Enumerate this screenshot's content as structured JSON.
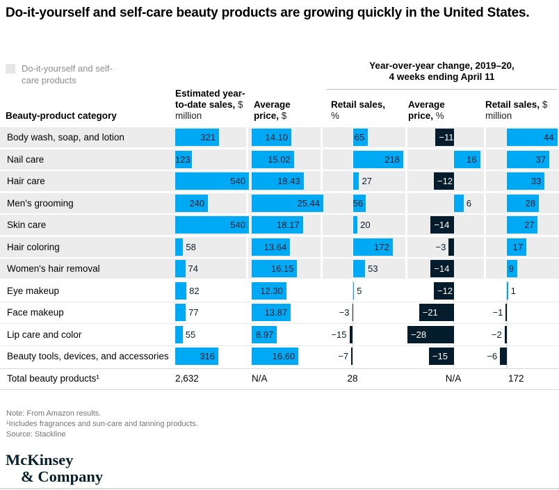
{
  "title": "Do-it-yourself and self-care beauty products are growing quickly in the United States.",
  "legend": {
    "label": "Do-it-yourself and self-care products",
    "swatch_color": "#e7e7e7"
  },
  "yoy_header": {
    "line1": "Year-over-year change, 2019–20,",
    "line2": "4 weeks ending April 11"
  },
  "columns": [
    {
      "bold": "Beauty-product category",
      "unit": ""
    },
    {
      "bold": "Estimated year-to-date sales,",
      "unit": "$ million"
    },
    {
      "bold": "Average price,",
      "unit": "$"
    },
    {
      "bold": "Retail sales,",
      "unit": "%"
    },
    {
      "bold": "Average price,",
      "unit": "%"
    },
    {
      "bold": "Retail sales,",
      "unit": "$ million"
    }
  ],
  "colors": {
    "positive_bar": "#00a9f4",
    "negative_bar": "#051c2c",
    "row_highlight": "#ececec",
    "bar_label_dark": "#051c2c",
    "bar_label_light": "#ffffff"
  },
  "table": {
    "rows": [
      {
        "category": "Body wash, soap, and lotion",
        "shaded": true,
        "cells": [
          {
            "v": 321,
            "label": "321",
            "pos": "in"
          },
          {
            "v": 14.1,
            "label": "14.10",
            "pos": "in"
          },
          {
            "v": 65,
            "label": "65",
            "pos": "in"
          },
          {
            "v": -11,
            "label": "−11",
            "pos": "in"
          },
          {
            "v": 44,
            "label": "44",
            "pos": "in"
          }
        ]
      },
      {
        "category": "Nail care",
        "shaded": true,
        "cells": [
          {
            "v": 123,
            "label": "123",
            "pos": "in"
          },
          {
            "v": 15.02,
            "label": "15.02",
            "pos": "in"
          },
          {
            "v": 218,
            "label": "218",
            "pos": "in"
          },
          {
            "v": 16,
            "label": "16",
            "pos": "in"
          },
          {
            "v": 37,
            "label": "37",
            "pos": "in"
          }
        ]
      },
      {
        "category": "Hair care",
        "shaded": true,
        "cells": [
          {
            "v": 540,
            "label": "540",
            "pos": "in"
          },
          {
            "v": 18.43,
            "label": "18.43",
            "pos": "in"
          },
          {
            "v": 27,
            "label": "27",
            "pos": "out"
          },
          {
            "v": -12,
            "label": "−12",
            "pos": "in"
          },
          {
            "v": 33,
            "label": "33",
            "pos": "in"
          }
        ]
      },
      {
        "category": "Men's grooming",
        "shaded": true,
        "cells": [
          {
            "v": 240,
            "label": "240",
            "pos": "in"
          },
          {
            "v": 25.44,
            "label": "25.44",
            "pos": "in"
          },
          {
            "v": 56,
            "label": "56",
            "pos": "in"
          },
          {
            "v": 6,
            "label": "6",
            "pos": "out"
          },
          {
            "v": 28,
            "label": "28",
            "pos": "in"
          }
        ]
      },
      {
        "category": "Skin care",
        "shaded": true,
        "cells": [
          {
            "v": 540,
            "label": "540",
            "pos": "in"
          },
          {
            "v": 18.17,
            "label": "18.17",
            "pos": "in"
          },
          {
            "v": 20,
            "label": "20",
            "pos": "out"
          },
          {
            "v": -14,
            "label": "−14",
            "pos": "in"
          },
          {
            "v": 27,
            "label": "27",
            "pos": "in"
          }
        ]
      },
      {
        "category": "Hair coloring",
        "shaded": true,
        "cells": [
          {
            "v": 58,
            "label": "58",
            "pos": "out"
          },
          {
            "v": 13.64,
            "label": "13.64",
            "pos": "in"
          },
          {
            "v": 172,
            "label": "172",
            "pos": "in"
          },
          {
            "v": -3,
            "label": "−3",
            "pos": "out"
          },
          {
            "v": 17,
            "label": "17",
            "pos": "in"
          }
        ]
      },
      {
        "category": "Women's hair removal",
        "shaded": true,
        "cells": [
          {
            "v": 74,
            "label": "74",
            "pos": "out"
          },
          {
            "v": 16.15,
            "label": "16.15",
            "pos": "in"
          },
          {
            "v": 53,
            "label": "53",
            "pos": "out"
          },
          {
            "v": -14,
            "label": "−14",
            "pos": "in"
          },
          {
            "v": 9,
            "label": "9",
            "pos": "in"
          }
        ]
      },
      {
        "category": "Eye makeup",
        "shaded": false,
        "cells": [
          {
            "v": 82,
            "label": "82",
            "pos": "out"
          },
          {
            "v": 12.3,
            "label": "12.30",
            "pos": "in"
          },
          {
            "v": 5,
            "label": "5",
            "pos": "out"
          },
          {
            "v": -12,
            "label": "−12",
            "pos": "in"
          },
          {
            "v": 1,
            "label": "1",
            "pos": "out"
          }
        ]
      },
      {
        "category": "Face makeup",
        "shaded": false,
        "cells": [
          {
            "v": 77,
            "label": "77",
            "pos": "out"
          },
          {
            "v": 13.87,
            "label": "13.87",
            "pos": "in"
          },
          {
            "v": -3,
            "label": "−3",
            "pos": "out"
          },
          {
            "v": -21,
            "label": "−21",
            "pos": "in"
          },
          {
            "v": -1,
            "label": "−1",
            "pos": "out"
          }
        ]
      },
      {
        "category": "Lip care and color",
        "shaded": false,
        "cells": [
          {
            "v": 55,
            "label": "55",
            "pos": "out"
          },
          {
            "v": 8.97,
            "label": "8.97",
            "pos": "in"
          },
          {
            "v": -15,
            "label": "−15",
            "pos": "out"
          },
          {
            "v": -28,
            "label": "−28",
            "pos": "in"
          },
          {
            "v": -2,
            "label": "−2",
            "pos": "out"
          }
        ]
      },
      {
        "category": "Beauty tools, devices, and accessories",
        "shaded": false,
        "cells": [
          {
            "v": 316,
            "label": "316",
            "pos": "in"
          },
          {
            "v": 16.6,
            "label": "16.60",
            "pos": "in"
          },
          {
            "v": -7,
            "label": "−7",
            "pos": "out"
          },
          {
            "v": -15,
            "label": "−15",
            "pos": "in"
          },
          {
            "v": -6,
            "label": "−6",
            "pos": "out"
          }
        ]
      }
    ]
  },
  "totals": {
    "category": "Total beauty products¹",
    "ytd": "2,632",
    "price": "N/A",
    "retail_pct": "28",
    "price_pct": "N/A",
    "retail_m": "172"
  },
  "footnotes": [
    "Note: From Amazon results.",
    "¹Includes fragrances and sun-care and tanning products.",
    "Source: Stackline"
  ],
  "logo": {
    "line1": "McKinsey",
    "line2": "& Company"
  },
  "chart_data": {
    "type": "bar",
    "title": "Do-it-yourself and self-care beauty products are growing quickly in the United States.",
    "subtitle": "Year-over-year change, 2019–20, 4 weeks ending April 11",
    "categories": [
      "Body wash, soap, and lotion",
      "Nail care",
      "Hair care",
      "Men's grooming",
      "Skin care",
      "Hair coloring",
      "Women's hair removal",
      "Eye makeup",
      "Face makeup",
      "Lip care and color",
      "Beauty tools, devices, and accessories"
    ],
    "series": [
      {
        "name": "Estimated year-to-date sales, $ million",
        "values": [
          321,
          123,
          540,
          240,
          540,
          58,
          74,
          82,
          77,
          55,
          316
        ]
      },
      {
        "name": "Average price, $",
        "values": [
          14.1,
          15.02,
          18.43,
          25.44,
          18.17,
          13.64,
          16.15,
          12.3,
          13.87,
          8.97,
          16.6
        ]
      },
      {
        "name": "Retail sales YoY change, %",
        "values": [
          65,
          218,
          27,
          56,
          20,
          172,
          53,
          5,
          -3,
          -15,
          -7
        ]
      },
      {
        "name": "Average price YoY change, %",
        "values": [
          -11,
          16,
          -12,
          6,
          -14,
          -3,
          -14,
          -12,
          -21,
          -28,
          -15
        ]
      },
      {
        "name": "Retail sales YoY change, $ million",
        "values": [
          44,
          37,
          33,
          28,
          27,
          17,
          9,
          1,
          -1,
          -2,
          -6
        ]
      }
    ],
    "totals": {
      "Estimated year-to-date sales, $ million": "2,632",
      "Average price, $": "N/A",
      "Retail sales YoY change, %": "28",
      "Average price YoY change, %": "N/A",
      "Retail sales YoY change, $ million": "172"
    },
    "highlighted_categories": [
      "Body wash, soap, and lotion",
      "Nail care",
      "Hair care",
      "Men's grooming",
      "Skin care",
      "Hair coloring",
      "Women's hair removal"
    ],
    "highlight_meaning": "Do-it-yourself and self-care products",
    "layout": {
      "orientation": "horizontal",
      "positive_color": "#00a9f4",
      "negative_color": "#051c2c",
      "grid": false
    }
  }
}
